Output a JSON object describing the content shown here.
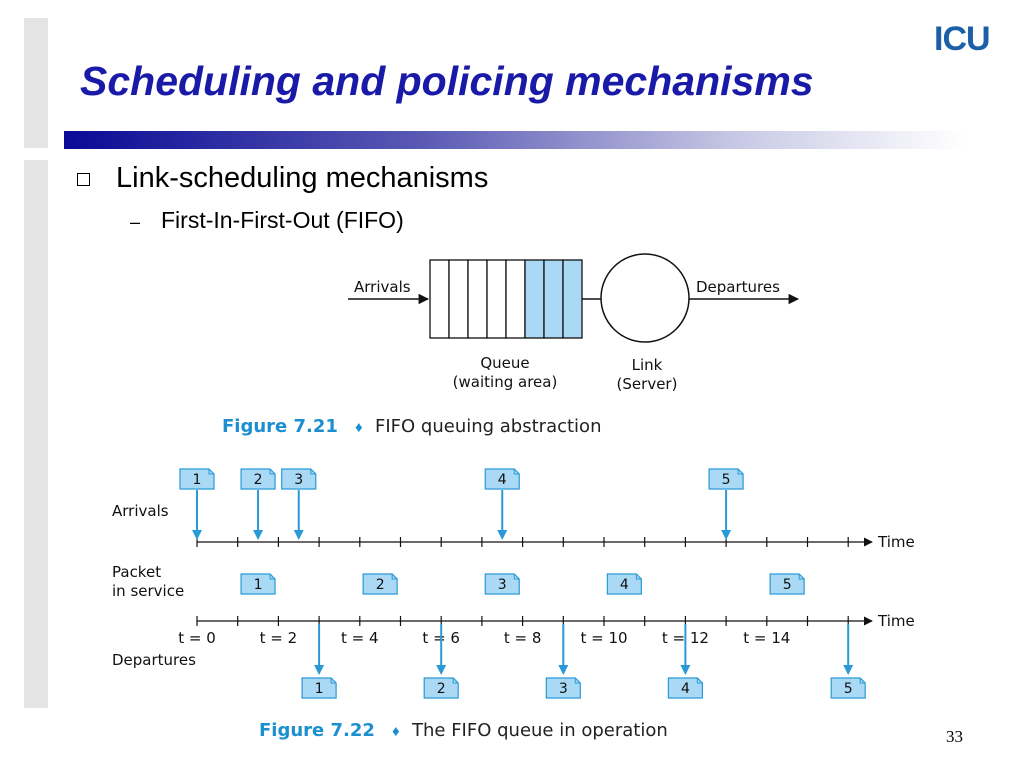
{
  "slide": {
    "title": "Scheduling and policing mechanisms",
    "logo": "ICU",
    "page_number": "33"
  },
  "bullets": {
    "main": "Link-scheduling mechanisms",
    "sub_dash": "–",
    "sub": "First-In-First-Out (FIFO)"
  },
  "figure1": {
    "arrivals_label": "Arrivals",
    "departures_label": "Departures",
    "queue_label_line1": "Queue",
    "queue_label_line2": "(waiting area)",
    "link_label_line1": "Link",
    "link_label_line2": "(Server)",
    "caption_number": "Figure 7.21",
    "caption_text": "FIFO queuing abstraction",
    "queue_slots_total": 8,
    "queue_slots_filled": 3
  },
  "figure2": {
    "caption_number": "Figure 7.22",
    "caption_text": "The FIFO queue in operation",
    "row_labels": {
      "arrivals": "Arrivals",
      "in_service_line1": "Packet",
      "in_service_line2": "in service",
      "departures": "Departures"
    },
    "time_label": "Time",
    "tick_labels": [
      {
        "t": 0,
        "label": "t = 0"
      },
      {
        "t": 2,
        "label": "t = 2"
      },
      {
        "t": 4,
        "label": "t = 4"
      },
      {
        "t": 6,
        "label": "t = 6"
      },
      {
        "t": 8,
        "label": "t = 8"
      },
      {
        "t": 10,
        "label": "t = 10"
      },
      {
        "t": 12,
        "label": "t = 12"
      },
      {
        "t": 14,
        "label": "t = 14"
      }
    ],
    "arrivals": [
      {
        "packet": "1",
        "t": 0
      },
      {
        "packet": "2",
        "t": 1.5
      },
      {
        "packet": "3",
        "t": 2.5
      },
      {
        "packet": "4",
        "t": 7.5
      },
      {
        "packet": "5",
        "t": 13
      }
    ],
    "in_service": [
      {
        "packet": "1",
        "start": 1,
        "end": 2
      },
      {
        "packet": "2",
        "start": 4,
        "end": 5
      },
      {
        "packet": "3",
        "start": 7,
        "end": 8
      },
      {
        "packet": "4",
        "start": 10,
        "end": 11
      },
      {
        "packet": "5",
        "start": 14,
        "end": 15
      }
    ],
    "departures": [
      {
        "packet": "1",
        "t": 3
      },
      {
        "packet": "2",
        "t": 6
      },
      {
        "packet": "3",
        "t": 9
      },
      {
        "packet": "4",
        "t": 12
      },
      {
        "packet": "5",
        "t": 16
      }
    ]
  }
}
